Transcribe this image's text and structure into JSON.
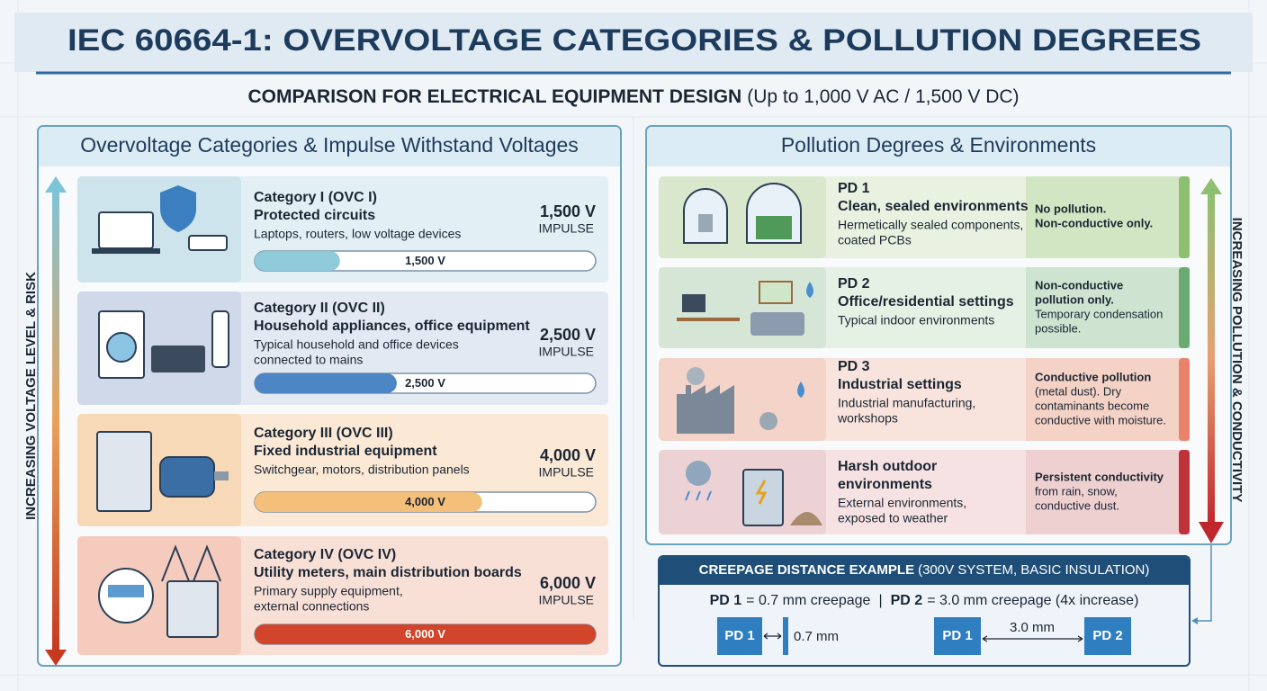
{
  "header": {
    "title": "IEC 60664-1: OVERVOLTAGE CATEGORIES & POLLUTION DEGREES",
    "subtitle_bold": "COMPARISON FOR ELECTRICAL EQUIPMENT DESIGN",
    "subtitle_rest": "(Up to 1,000 V AC / 1,500 V DC)"
  },
  "overvoltage": {
    "heading": "Overvoltage Categories & Impulse Withstand Voltages",
    "axis_label": "INCREASING VOLTAGE LEVEL & RISK",
    "impulse_label": "IMPULSE",
    "categories": [
      {
        "name": "Category I (OVC I)",
        "title": "Protected circuits",
        "description": [
          "Laptops, routers, low voltage devices"
        ],
        "voltage": 1500,
        "voltage_label": "1,500 V",
        "color": "#8fcadb"
      },
      {
        "name": "Category II (OVC II)",
        "title": "Household appliances, office equipment",
        "description": [
          "Typical household and office devices",
          "connected to mains"
        ],
        "voltage": 2500,
        "voltage_label": "2,500 V",
        "color": "#4c86c4"
      },
      {
        "name": "Category III (OVC III)",
        "title": "Fixed industrial equipment",
        "description": [
          "Switchgear, motors, distribution panels"
        ],
        "voltage": 4000,
        "voltage_label": "4,000 V",
        "color": "#f4bf7a"
      },
      {
        "name": "Category IV (OVC IV)",
        "title": "Utility meters, main distribution boards",
        "description": [
          "Primary supply equipment,",
          "external connections"
        ],
        "voltage": 6000,
        "voltage_label": "6,000 V",
        "color": "#d2452a"
      }
    ]
  },
  "pollution": {
    "heading": "Pollution Degrees & Environments",
    "axis_label": "INCREASING POLLUTION & CONDUCTIVITY",
    "degrees": [
      {
        "name": "PD 1",
        "title": [
          "Clean, sealed environments"
        ],
        "description": [
          "Hermetically sealed components,",
          "coated PCBs"
        ],
        "note_bold": [
          "No pollution.",
          "Non-conductive only."
        ],
        "note": []
      },
      {
        "name": "PD 2",
        "title": [
          "Office/residential settings"
        ],
        "description": [
          "Typical indoor environments"
        ],
        "note_bold": [
          "Non-conductive",
          "pollution only."
        ],
        "note": [
          "Temporary condensation",
          "possible."
        ]
      },
      {
        "name": "PD 3",
        "title": [
          "Industrial settings"
        ],
        "description": [
          "Industrial manufacturing,",
          "workshops"
        ],
        "note_bold": [
          "Conductive pollution"
        ],
        "note": [
          "(metal dust). Dry",
          "contaminants become",
          "conductive with moisture."
        ]
      },
      {
        "title": [
          "Harsh outdoor",
          "environments"
        ],
        "description": [
          "External environments,",
          "exposed to weather"
        ],
        "note_bold": [
          "Persistent conductivity"
        ],
        "note": [
          "from rain, snow,",
          "conductive dust."
        ]
      }
    ]
  },
  "creepage": {
    "title_bold": "CREEPAGE DISTANCE EXAMPLE",
    "title_rest": "(300V SYSTEM, BASIC INSULATION)",
    "summary_pd1": "= 0.7 mm creepage",
    "separator": "|",
    "summary_pd2": "= 3.0 mm creepage (4x increase)",
    "short_gap": "0.7 mm",
    "long_gap": "3.0 mm"
  }
}
